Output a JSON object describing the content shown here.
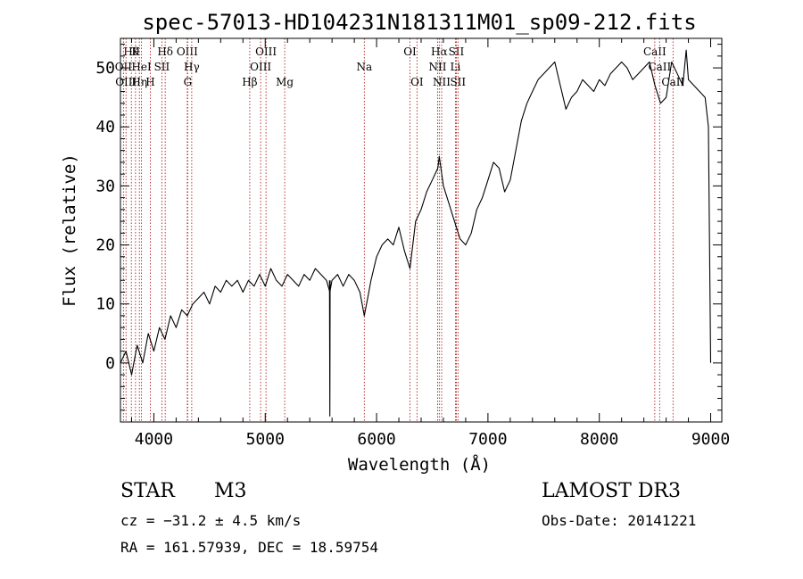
{
  "chart_data": {
    "type": "line",
    "title": "spec-57013-HD104231N181311M01_sp09-212.fits",
    "xlabel": "Wavelength (Å)",
    "ylabel": "Flux (relative)",
    "xlim": [
      3700,
      9100
    ],
    "ylim": [
      -10,
      55
    ],
    "xticks": [
      4000,
      5000,
      6000,
      7000,
      8000,
      9000
    ],
    "yticks": [
      0,
      10,
      20,
      30,
      40,
      50
    ],
    "grid": false,
    "series": [
      {
        "name": "spectrum",
        "x": [
          3700,
          3750,
          3800,
          3850,
          3900,
          3950,
          4000,
          4050,
          4100,
          4150,
          4200,
          4250,
          4300,
          4350,
          4400,
          4450,
          4500,
          4550,
          4600,
          4650,
          4700,
          4750,
          4800,
          4850,
          4900,
          4950,
          5000,
          5050,
          5100,
          5150,
          5200,
          5250,
          5300,
          5350,
          5400,
          5450,
          5500,
          5550,
          5580,
          5600,
          5650,
          5700,
          5750,
          5800,
          5850,
          5890,
          5920,
          5950,
          6000,
          6050,
          6100,
          6150,
          6200,
          6250,
          6300,
          6350,
          6400,
          6450,
          6500,
          6550,
          6563,
          6600,
          6650,
          6700,
          6750,
          6800,
          6850,
          6900,
          6950,
          7000,
          7050,
          7100,
          7150,
          7200,
          7250,
          7300,
          7350,
          7400,
          7450,
          7500,
          7550,
          7600,
          7650,
          7700,
          7750,
          7800,
          7850,
          7900,
          7950,
          8000,
          8050,
          8100,
          8150,
          8200,
          8250,
          8300,
          8350,
          8400,
          8450,
          8500,
          8550,
          8600,
          8650,
          8700,
          8750,
          8780,
          8800,
          8850,
          8900,
          8950,
          8980,
          9000
        ],
        "y": [
          0,
          2,
          -2,
          3,
          0,
          5,
          2,
          6,
          4,
          8,
          6,
          9,
          8,
          10,
          11,
          12,
          10,
          13,
          12,
          14,
          13,
          14,
          12,
          14,
          13,
          15,
          13,
          16,
          14,
          13,
          15,
          14,
          13,
          15,
          14,
          16,
          15,
          14,
          12,
          14,
          15,
          13,
          15,
          14,
          12,
          8,
          11,
          14,
          18,
          20,
          21,
          20,
          23,
          19,
          16,
          24,
          26,
          29,
          31,
          33,
          35,
          30,
          27,
          24,
          21,
          20,
          22,
          26,
          28,
          31,
          34,
          33,
          29,
          31,
          36,
          41,
          44,
          46,
          48,
          49,
          50,
          51,
          47,
          43,
          45,
          46,
          48,
          47,
          46,
          48,
          47,
          49,
          50,
          51,
          50,
          48,
          49,
          50,
          51,
          47,
          44,
          45,
          51,
          49,
          47,
          53,
          48,
          47,
          46,
          45,
          40,
          0
        ]
      },
      {
        "name": "spike",
        "x": [
          5577,
          5580,
          5583
        ],
        "y": [
          14,
          -9,
          14
        ]
      }
    ],
    "line_markers": [
      {
        "wave": 3798,
        "label": "Hθ",
        "row": 1
      },
      {
        "wave": 3835,
        "label": "K",
        "row": 1
      },
      {
        "wave": 4102,
        "label": "Hδ",
        "row": 1
      },
      {
        "wave": 4300,
        "label": "OIII",
        "row": 1
      },
      {
        "wave": 5007,
        "label": "OIII",
        "row": 1
      },
      {
        "wave": 6300,
        "label": "OI",
        "row": 1
      },
      {
        "wave": 6563,
        "label": "Hα",
        "row": 1
      },
      {
        "wave": 6716,
        "label": "SII",
        "row": 1
      },
      {
        "wave": 8498,
        "label": "CaII",
        "row": 1
      },
      {
        "wave": 3727,
        "label": "OII",
        "row": 2
      },
      {
        "wave": 3889,
        "label": "HeI",
        "row": 2
      },
      {
        "wave": 4072,
        "label": "SII",
        "row": 2
      },
      {
        "wave": 4340,
        "label": "Hγ",
        "row": 2
      },
      {
        "wave": 4959,
        "label": "OIII",
        "row": 2
      },
      {
        "wave": 5890,
        "label": "Na",
        "row": 2
      },
      {
        "wave": 6548,
        "label": "NII",
        "row": 2
      },
      {
        "wave": 6708,
        "label": "Li",
        "row": 2
      },
      {
        "wave": 8542,
        "label": "CaII",
        "row": 2
      },
      {
        "wave": 3750,
        "label": "OIII",
        "row": 3
      },
      {
        "wave": 3870,
        "label": "Hη",
        "row": 3
      },
      {
        "wave": 3968,
        "label": "H",
        "row": 3
      },
      {
        "wave": 4304,
        "label": "G",
        "row": 3
      },
      {
        "wave": 4861,
        "label": "Hβ",
        "row": 3
      },
      {
        "wave": 5175,
        "label": "Mg",
        "row": 3
      },
      {
        "wave": 6363,
        "label": "OI",
        "row": 3
      },
      {
        "wave": 6584,
        "label": "NII",
        "row": 3
      },
      {
        "wave": 6731,
        "label": "SII",
        "row": 3
      },
      {
        "wave": 8662,
        "label": "CaII",
        "row": 3
      }
    ]
  },
  "info": {
    "object_class": "STAR",
    "subclass": "M3",
    "survey": "LAMOST DR3",
    "cz": "cz = −31.2 ± 4.5 km/s",
    "obs_date": "Obs-Date: 20141221",
    "coords": "RA = 161.57939, DEC =  18.59754"
  },
  "colors": {
    "axes": "#000000",
    "spectrum": "#000000",
    "marker_line": "#b22222",
    "background": "#ffffff"
  }
}
